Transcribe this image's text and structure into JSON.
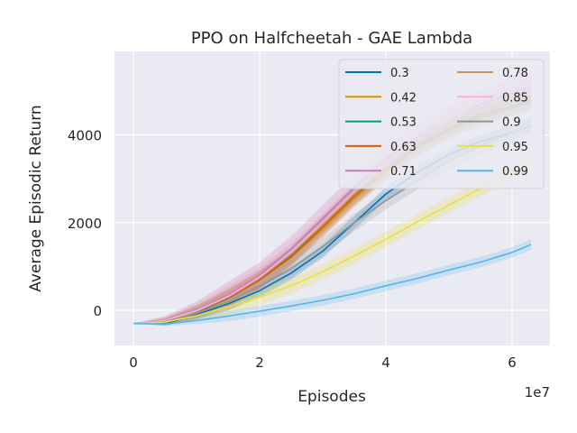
{
  "chart_data": {
    "type": "line",
    "title": "PPO on Halfcheetah - GAE Lambda",
    "xlabel": "Episodes",
    "ylabel": "Average Episodic Return",
    "x_offset_label": "1e7",
    "xlim": [
      -0.3,
      6.6
    ],
    "ylim": [
      -800,
      5900
    ],
    "xticks": [
      0,
      2,
      4,
      6
    ],
    "xtick_labels": [
      "0",
      "2",
      "4",
      "6"
    ],
    "yticks": [
      0,
      2000,
      4000
    ],
    "ytick_labels": [
      "0",
      "2000",
      "4000"
    ],
    "grid": true,
    "legend_position": "top-right",
    "legend_columns": 2,
    "x": [
      0,
      0.5,
      1.0,
      1.5,
      2.0,
      2.5,
      3.0,
      3.5,
      4.0,
      4.5,
      5.0,
      5.5,
      6.0,
      6.3
    ],
    "series": [
      {
        "name": "0.3",
        "color": "#0173b2",
        "band": 150,
        "values": [
          -300,
          -300,
          -100,
          150,
          450,
          850,
          1350,
          2000,
          2650,
          3150,
          3550,
          3850,
          4050,
          4200
        ]
      },
      {
        "name": "0.42",
        "color": "#de8f05",
        "band": 200,
        "values": [
          -300,
          -230,
          -20,
          280,
          700,
          1200,
          1850,
          2550,
          3150,
          3700,
          4150,
          4500,
          4750,
          4900
        ]
      },
      {
        "name": "0.53",
        "color": "#029e73",
        "band": 200,
        "values": [
          -300,
          -260,
          -40,
          270,
          700,
          1250,
          1950,
          2650,
          3250,
          3750,
          4150,
          4450,
          4650,
          4800
        ]
      },
      {
        "name": "0.63",
        "color": "#d55e00",
        "band": 200,
        "values": [
          -300,
          -250,
          -30,
          280,
          690,
          1220,
          1900,
          2600,
          3200,
          3700,
          4100,
          4400,
          4600,
          4750
        ]
      },
      {
        "name": "0.71",
        "color": "#cc78bc",
        "band": 300,
        "values": [
          -300,
          -230,
          0,
          350,
          800,
          1400,
          2100,
          2800,
          3450,
          3950,
          4350,
          4700,
          4950,
          5100
        ]
      },
      {
        "name": "0.78",
        "color": "#ca9161",
        "band": 250,
        "values": [
          -300,
          -240,
          -20,
          300,
          730,
          1280,
          1950,
          2650,
          3250,
          3800,
          4250,
          4600,
          4850,
          5000
        ]
      },
      {
        "name": "0.85",
        "color": "#fbafe4",
        "band": 300,
        "values": [
          -300,
          -230,
          -10,
          320,
          760,
          1330,
          2000,
          2700,
          3350,
          3900,
          4350,
          4750,
          5050,
          5200
        ]
      },
      {
        "name": "0.9",
        "color": "#949494",
        "band": 200,
        "values": [
          -300,
          -260,
          -60,
          200,
          550,
          950,
          1450,
          2000,
          2500,
          2950,
          3400,
          3750,
          4050,
          4200
        ]
      },
      {
        "name": "0.95",
        "color": "#ece133",
        "band": 180,
        "values": [
          -300,
          -270,
          -120,
          80,
          300,
          560,
          880,
          1240,
          1620,
          2020,
          2400,
          2780,
          3150,
          3350
        ]
      },
      {
        "name": "0.99",
        "color": "#56b4e9",
        "band": 120,
        "values": [
          -300,
          -310,
          -230,
          -130,
          -20,
          100,
          230,
          380,
          560,
          730,
          920,
          1100,
          1320,
          1500
        ]
      }
    ]
  }
}
